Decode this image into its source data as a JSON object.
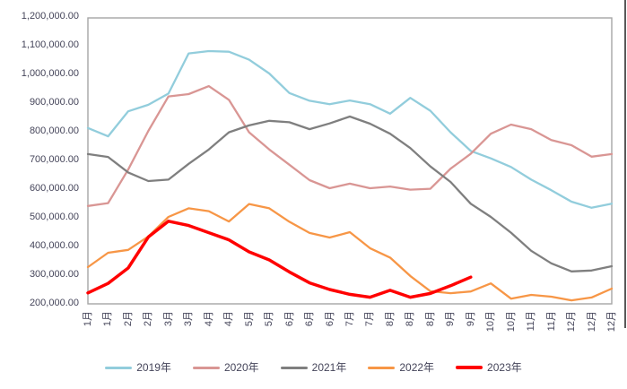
{
  "chart_data": {
    "type": "line",
    "title": "",
    "xlabel": "",
    "ylabel": "",
    "grid": false,
    "legend_position": "bottom",
    "y_min": 200000,
    "y_max": 1200000,
    "y_tick_step": 100000,
    "y_ticks": [
      "1,200,000.00",
      "1,100,000.00",
      "1,000,000.00",
      "900,000.00",
      "800,000.00",
      "700,000.00",
      "600,000.00",
      "500,000.00",
      "400,000.00",
      "300,000.00",
      "200,000.00"
    ],
    "x_labels": [
      "1月",
      "1月",
      "2月",
      "2月",
      "3月",
      "3月",
      "4月",
      "4月",
      "5月",
      "5月",
      "6月",
      "6月",
      "6月",
      "7月",
      "7月",
      "8月",
      "8月",
      "8月",
      "9月",
      "9月",
      "10月",
      "10月",
      "11月",
      "11月",
      "12月",
      "12月",
      "12月"
    ],
    "series": [
      {
        "name": "2019年",
        "color": "#92CDDC",
        "emphasis": false,
        "values": [
          810000,
          781000,
          868000,
          891000,
          930000,
          1070000,
          1078000,
          1076000,
          1048000,
          1000000,
          932000,
          905000,
          893000,
          906000,
          893000,
          860000,
          915000,
          870000,
          795000,
          730000,
          704000,
          674000,
          630000,
          593000,
          553000,
          532000,
          546000
        ]
      },
      {
        "name": "2020年",
        "color": "#D99694",
        "emphasis": false,
        "values": [
          538000,
          548000,
          665000,
          800000,
          920000,
          928000,
          956000,
          908000,
          795000,
          735000,
          682000,
          628000,
          600000,
          616000,
          600000,
          606000,
          595000,
          598000,
          668000,
          720000,
          790000,
          822000,
          806000,
          768000,
          750000,
          710000,
          719000
        ]
      },
      {
        "name": "2021年",
        "color": "#7F7F7F",
        "emphasis": false,
        "values": [
          719000,
          709000,
          655000,
          625000,
          630000,
          685000,
          735000,
          795000,
          819000,
          835000,
          830000,
          806000,
          826000,
          850000,
          825000,
          790000,
          740000,
          676000,
          622000,
          546000,
          500000,
          445000,
          382000,
          338000,
          310000,
          313000,
          328000
        ]
      },
      {
        "name": "2022年",
        "color": "#F79646",
        "emphasis": false,
        "values": [
          325000,
          375000,
          385000,
          432000,
          500000,
          530000,
          520000,
          484000,
          545000,
          530000,
          483000,
          444000,
          428000,
          447000,
          391000,
          358000,
          294000,
          241000,
          234000,
          240000,
          268000,
          215000,
          228000,
          222000,
          209000,
          219000,
          250000
        ]
      },
      {
        "name": "2023年",
        "color": "#FF0000",
        "emphasis": true,
        "values": [
          235000,
          268000,
          322000,
          430000,
          485000,
          470000,
          445000,
          420000,
          378000,
          350000,
          308000,
          270000,
          247000,
          230000,
          220000,
          244000,
          220000,
          233000,
          260000,
          290000
        ]
      }
    ]
  }
}
